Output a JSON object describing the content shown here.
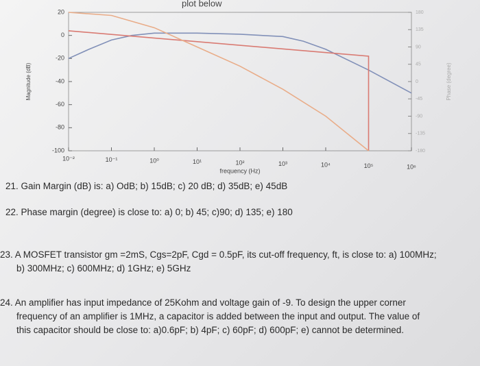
{
  "header": "plot below",
  "chart_data": {
    "type": "line",
    "xlabel": "frequency (Hz)",
    "ylabel": "Magnitude (dB)",
    "y2label": "Phase (degree)",
    "xlog": true,
    "xlim": [
      0.01,
      1000000
    ],
    "ylim": [
      -100,
      20
    ],
    "y2lim": [
      -180,
      180
    ],
    "xticks": [
      {
        "value": 0.01,
        "label": "10⁻²"
      },
      {
        "value": 0.1,
        "label": "10⁻¹"
      },
      {
        "value": 1,
        "label": "10⁰"
      },
      {
        "value": 10,
        "label": "10¹"
      },
      {
        "value": 100,
        "label": "10²"
      },
      {
        "value": 1000,
        "label": "10³"
      },
      {
        "value": 10000,
        "label": "10⁴"
      },
      {
        "value": 100000,
        "label": "10⁵"
      },
      {
        "value": 1000000,
        "label": "10⁶"
      }
    ],
    "yticks": [
      20,
      0,
      -20,
      -40,
      -60,
      -80,
      -100
    ],
    "y2ticks": [
      180,
      135,
      90,
      45,
      0,
      -45,
      -90,
      -135,
      -180
    ],
    "series": [
      {
        "color": "#8190b8",
        "x": [
          0.01,
          0.03,
          0.1,
          0.3,
          1,
          10,
          100,
          1000,
          3000,
          10000,
          100000,
          1000000
        ],
        "values": [
          -20,
          -12,
          -4,
          0,
          2,
          2,
          1,
          -1,
          -5,
          -12,
          -30,
          -50
        ]
      },
      {
        "color": "#d97a72",
        "x": [
          0.01,
          100000,
          100000
        ],
        "values": [
          4,
          -18,
          -100
        ]
      },
      {
        "color": "#e9ac88",
        "axis": "y2",
        "x": [
          0.01,
          0.1,
          1,
          10,
          100,
          1000,
          10000,
          100000
        ],
        "values": [
          180,
          172,
          140,
          90,
          40,
          -20,
          -90,
          -180
        ]
      }
    ]
  },
  "questions": [
    {
      "lines": [
        "21. Gain Margin (dB) is: a) OdB; b) 15dB; c) 20 dB; d) 35dB; e) 45dB"
      ]
    },
    {
      "lines": [
        "22. Phase margin (degree) is close to: a) 0; b) 45; c)90; d) 135; e) 180"
      ]
    },
    {
      "lines": [
        "23. A MOSFET transistor gm =2mS, Cgs=2pF, Cgd = 0.5pF, its cut-off frequency, ft, is close to: a) 100MHz;",
        "b) 300MHz; c) 600MHz; d) 1GHz; e) 5GHz"
      ]
    },
    {
      "lines": [
        "24. An amplifier has input impedance of 25Kohm and voltage gain of -9. To design the upper corner",
        "frequency of an amplifier is 1MHz, a capacitor is added between the input and output. The value of",
        "this capacitor should be close to: a)0.6pF; b) 4pF; c) 60pF; d) 600pF; e) cannot be determined."
      ]
    }
  ]
}
